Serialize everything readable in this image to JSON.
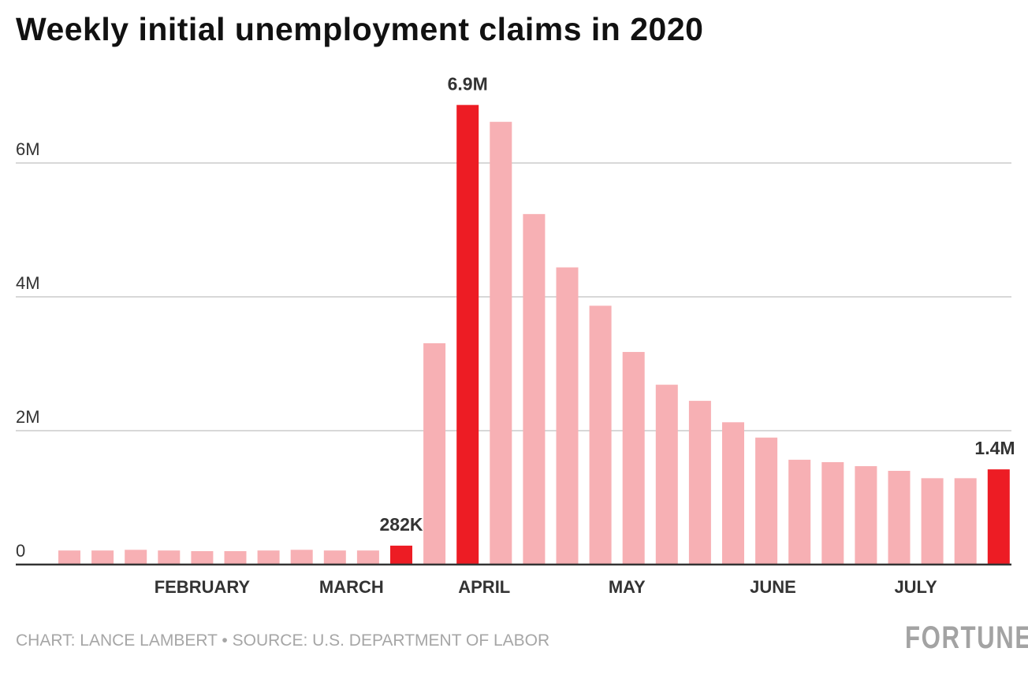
{
  "chart_data": {
    "type": "bar",
    "title": "Weekly initial unemployment claims in 2020",
    "xlabel": "",
    "ylabel": "",
    "ylim": [
      0,
      7000000
    ],
    "grid": true,
    "y_ticks": [
      {
        "value": 0,
        "label": "0"
      },
      {
        "value": 2000000,
        "label": "2M"
      },
      {
        "value": 4000000,
        "label": "4M"
      },
      {
        "value": 6000000,
        "label": "6M"
      }
    ],
    "month_labels": [
      {
        "label": "FEBRUARY",
        "at_bar": 4
      },
      {
        "label": "MARCH",
        "at_bar": 8.5
      },
      {
        "label": "APRIL",
        "at_bar": 12.5
      },
      {
        "label": "MAY",
        "at_bar": 16.8
      },
      {
        "label": "JUNE",
        "at_bar": 21.2
      },
      {
        "label": "JULY",
        "at_bar": 25.5
      }
    ],
    "values": [
      210000,
      210000,
      220000,
      210000,
      200000,
      200000,
      210000,
      220000,
      210000,
      210000,
      282000,
      3307000,
      6867000,
      6615000,
      5237000,
      4440000,
      3867000,
      3176000,
      2687000,
      2446000,
      2126000,
      1897000,
      1566000,
      1530000,
      1470000,
      1400000,
      1290000,
      1290000,
      1422000
    ],
    "highlighted": [
      10,
      12,
      28
    ],
    "data_labels": [
      {
        "bar": 10,
        "label": "282K"
      },
      {
        "bar": 12,
        "label": "6.9M"
      },
      {
        "bar": 28,
        "label": "1.4M"
      }
    ],
    "colors": {
      "highlight": "#ed1c24",
      "normal": "#f7b0b4",
      "grid": "#cccccc",
      "axis": "#333333"
    }
  },
  "footer": {
    "credit": "CHART: LANCE LAMBERT • SOURCE: U.S. DEPARTMENT OF LABOR",
    "logo": "FORTUNE"
  }
}
